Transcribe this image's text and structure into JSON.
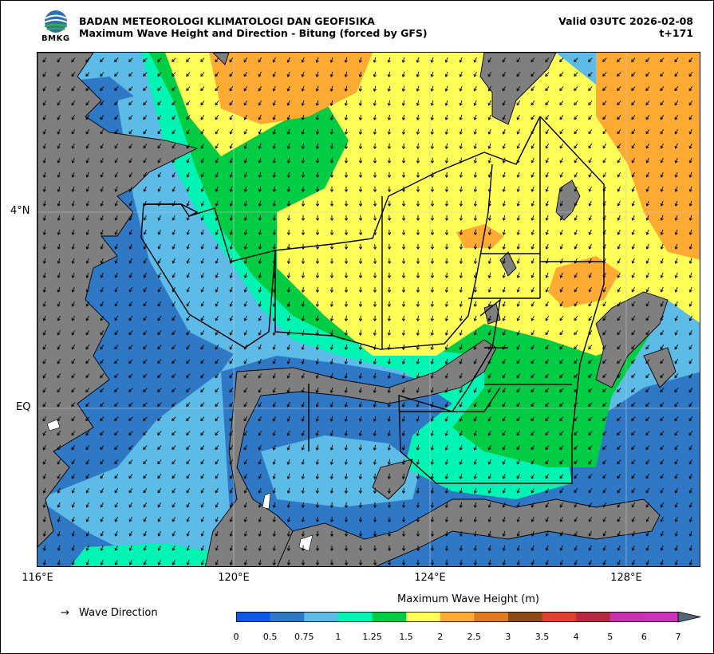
{
  "header": {
    "agency": "BADAN METEOROLOGI KLIMATOLOGI DAN GEOFISIKA",
    "product": "Maximum Wave Height and Direction - Bitung (forced by GFS)",
    "valid": "Valid 03UTC 2026-02-08",
    "lead": "t+171",
    "logo_text": "BMKG"
  },
  "axes": {
    "lat_labels": [
      "4°N",
      "EQ"
    ],
    "lon_labels": [
      "116°E",
      "120°E",
      "124°E",
      "128°E"
    ]
  },
  "legend": {
    "direction_arrow": "→",
    "direction_label": "Wave Direction",
    "colorbar_title": "Maximum Wave Height (m)",
    "ticks": [
      "0",
      "0.5",
      "0.75",
      "1",
      "1.25",
      "1.5",
      "2",
      "2.5",
      "3",
      "3.5",
      "4",
      "5",
      "6",
      "7"
    ],
    "colors": [
      "#0b5be8",
      "#2f78c6",
      "#5dbbe8",
      "#00f5b4",
      "#00cc44",
      "#ffff57",
      "#ffaa33",
      "#e07a22",
      "#8c4a14",
      "#e04030",
      "#b82840",
      "#c830b0",
      "#cc33bb",
      "#556677"
    ]
  },
  "map_colors": {
    "land": "#7f7f7f",
    "coast": "#000000",
    "grid": "#c8c8c8",
    "arrow": "#000000"
  }
}
